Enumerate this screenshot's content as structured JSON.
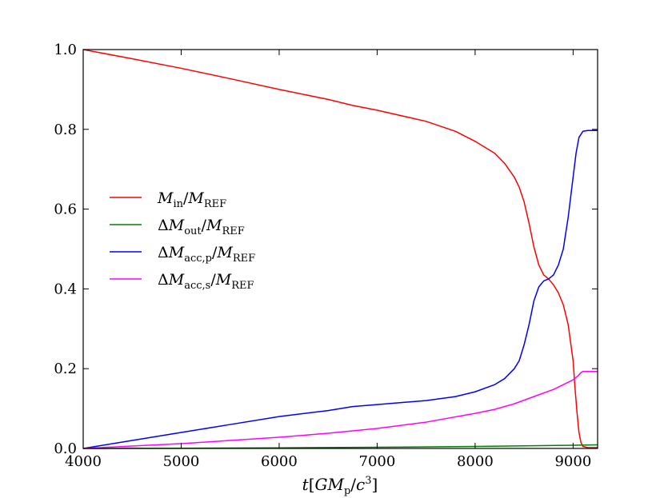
{
  "chart_data": {
    "type": "line",
    "title": "",
    "xlabel": {
      "t": "t",
      "open": "[",
      "G": "G",
      "M": "M",
      "sub": "p",
      "slash": "/",
      "c": "c",
      "sup": "3",
      "close": "]"
    },
    "ylabel": "",
    "xlim": [
      4000,
      9250
    ],
    "ylim": [
      0.0,
      1.0
    ],
    "xticks": [
      4000,
      5000,
      6000,
      7000,
      8000,
      9000
    ],
    "xtick_labels": [
      "4000",
      "5000",
      "6000",
      "7000",
      "8000",
      "9000"
    ],
    "yticks": [
      0.0,
      0.2,
      0.4,
      0.6,
      0.8,
      1.0
    ],
    "ytick_labels": [
      "0.0",
      "0.2",
      "0.4",
      "0.6",
      "0.8",
      "1.0"
    ],
    "grid": false,
    "legend_position": "center-left",
    "series": [
      {
        "key": "m_in",
        "color": "#ff0000",
        "legend": {
          "delta": "",
          "M": "M",
          "sub": "in",
          "slash": "/",
          "M2": "M",
          "sub2": "REF"
        },
        "x": [
          4000,
          4500,
          5000,
          5500,
          6000,
          6500,
          6750,
          7000,
          7500,
          7800,
          8000,
          8200,
          8300,
          8400,
          8450,
          8500,
          8550,
          8600,
          8650,
          8700,
          8750,
          8800,
          8850,
          8900,
          8950,
          9000,
          9020,
          9040,
          9060,
          9080,
          9100,
          9150,
          9250
        ],
        "y": [
          1.0,
          0.977,
          0.953,
          0.927,
          0.9,
          0.875,
          0.86,
          0.848,
          0.82,
          0.795,
          0.77,
          0.74,
          0.715,
          0.68,
          0.655,
          0.618,
          0.565,
          0.505,
          0.46,
          0.435,
          0.425,
          0.41,
          0.39,
          0.36,
          0.31,
          0.22,
          0.15,
          0.09,
          0.04,
          0.015,
          0.005,
          0.002,
          0.002
        ]
      },
      {
        "key": "dm_out",
        "color": "#008000",
        "legend": {
          "delta": "Δ",
          "M": "M",
          "sub": "out",
          "slash": "/",
          "M2": "M",
          "sub2": "REF"
        },
        "x": [
          4000,
          5000,
          6000,
          7000,
          8000,
          9000,
          9250
        ],
        "y": [
          0.0,
          0.0005,
          0.0015,
          0.003,
          0.005,
          0.008,
          0.009
        ]
      },
      {
        "key": "dm_acc_p",
        "color": "#0000ff",
        "legend": {
          "delta": "Δ",
          "M": "M",
          "sub": "acc,p",
          "slash": "/",
          "M2": "M",
          "sub2": "REF"
        },
        "x": [
          4000,
          4500,
          5000,
          5500,
          6000,
          6500,
          6750,
          7000,
          7500,
          7800,
          8000,
          8200,
          8300,
          8400,
          8450,
          8500,
          8550,
          8600,
          8650,
          8700,
          8750,
          8800,
          8850,
          8900,
          8950,
          9000,
          9030,
          9060,
          9100,
          9150,
          9250
        ],
        "y": [
          0.0,
          0.02,
          0.04,
          0.06,
          0.08,
          0.095,
          0.105,
          0.11,
          0.12,
          0.13,
          0.142,
          0.16,
          0.175,
          0.2,
          0.22,
          0.26,
          0.31,
          0.37,
          0.405,
          0.42,
          0.425,
          0.435,
          0.46,
          0.5,
          0.58,
          0.68,
          0.74,
          0.78,
          0.795,
          0.797,
          0.797
        ]
      },
      {
        "key": "dm_acc_s",
        "color": "#ff00ff",
        "legend": {
          "delta": "Δ",
          "M": "M",
          "sub": "acc,s",
          "slash": "/",
          "M2": "M",
          "sub2": "REF"
        },
        "x": [
          4000,
          4500,
          5000,
          5500,
          6000,
          6500,
          7000,
          7500,
          8000,
          8200,
          8400,
          8600,
          8800,
          9000,
          9050,
          9080,
          9100,
          9150,
          9250
        ],
        "y": [
          0.0,
          0.006,
          0.012,
          0.02,
          0.028,
          0.038,
          0.05,
          0.066,
          0.088,
          0.098,
          0.112,
          0.13,
          0.148,
          0.172,
          0.182,
          0.19,
          0.193,
          0.193,
          0.193
        ]
      }
    ]
  }
}
